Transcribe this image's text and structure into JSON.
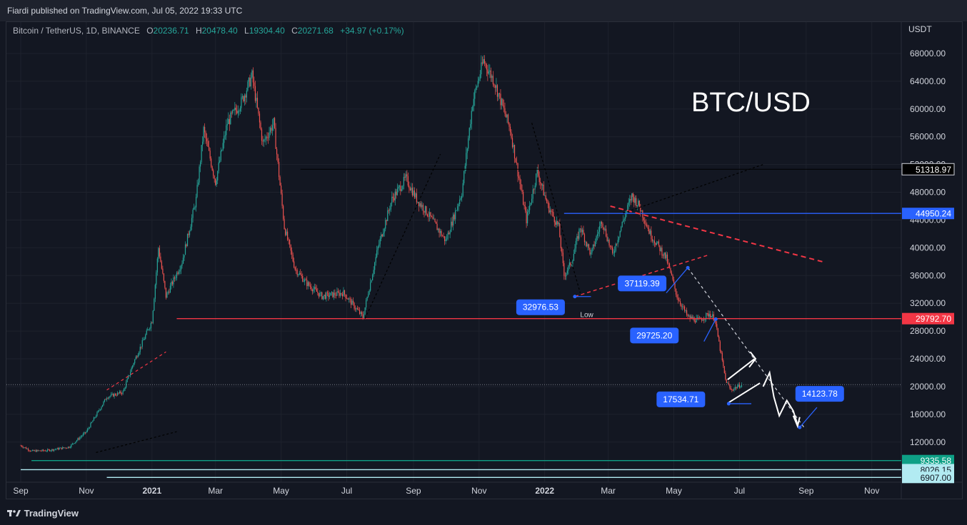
{
  "header": {
    "published": "Fiardi published on TradingView.com, Jul 05, 2022 19:33 UTC"
  },
  "legend": {
    "symbol": "Bitcoin / TetherUS, 1D, BINANCE",
    "o_label": "O",
    "o": "20236.71",
    "h_label": "H",
    "h": "20478.40",
    "l_label": "L",
    "l": "19304.40",
    "c_label": "C",
    "c": "20271.68",
    "change": "+34.97 (+0.17%)"
  },
  "footer": {
    "brand": "TradingView"
  },
  "colors": {
    "background": "#131722",
    "up": "#26a69a",
    "down": "#ef5350",
    "label_blue": "#2962ff",
    "red_level": "#f23645",
    "blue_level": "#2962ff"
  },
  "chart_data": {
    "type": "candlestick",
    "title": "BTC/USD",
    "currency": "USDT",
    "y_ticks": [
      "68000.00",
      "64000.00",
      "60000.00",
      "56000.00",
      "52000.00",
      "48000.00",
      "44000.00",
      "40000.00",
      "36000.00",
      "32000.00",
      "28000.00",
      "24000.00",
      "20000.00",
      "16000.00",
      "12000.00"
    ],
    "ylim": [
      4000,
      70000
    ],
    "x_ticks": [
      {
        "label": "Sep",
        "d": 0
      },
      {
        "label": "Nov",
        "d": 61
      },
      {
        "label": "2021",
        "d": 122,
        "bold": true
      },
      {
        "label": "Mar",
        "d": 181
      },
      {
        "label": "May",
        "d": 242
      },
      {
        "label": "Jul",
        "d": 303
      },
      {
        "label": "Sep",
        "d": 365
      },
      {
        "label": "Nov",
        "d": 426
      },
      {
        "label": "2022",
        "d": 487,
        "bold": true
      },
      {
        "label": "Mar",
        "d": 546
      },
      {
        "label": "May",
        "d": 607
      },
      {
        "label": "Jul",
        "d": 668
      },
      {
        "label": "Sep",
        "d": 730
      },
      {
        "label": "Nov",
        "d": 791
      }
    ],
    "price_path": [
      [
        0,
        11500
      ],
      [
        10,
        10700
      ],
      [
        25,
        10800
      ],
      [
        45,
        11300
      ],
      [
        61,
        13500
      ],
      [
        80,
        18500
      ],
      [
        95,
        19200
      ],
      [
        105,
        23500
      ],
      [
        122,
        29500
      ],
      [
        128,
        40000
      ],
      [
        135,
        33000
      ],
      [
        150,
        38000
      ],
      [
        163,
        47000
      ],
      [
        170,
        57000
      ],
      [
        181,
        49500
      ],
      [
        192,
        58000
      ],
      [
        205,
        61000
      ],
      [
        215,
        64800
      ],
      [
        225,
        55000
      ],
      [
        235,
        58000
      ],
      [
        245,
        43000
      ],
      [
        255,
        37000
      ],
      [
        265,
        35000
      ],
      [
        280,
        33000
      ],
      [
        300,
        33500
      ],
      [
        318,
        30000
      ],
      [
        332,
        40000
      ],
      [
        345,
        47000
      ],
      [
        358,
        50000
      ],
      [
        368,
        47000
      ],
      [
        378,
        45000
      ],
      [
        395,
        41000
      ],
      [
        410,
        48000
      ],
      [
        420,
        61000
      ],
      [
        430,
        67000
      ],
      [
        440,
        64000
      ],
      [
        455,
        57000
      ],
      [
        470,
        44000
      ],
      [
        480,
        51000
      ],
      [
        490,
        46000
      ],
      [
        500,
        43000
      ],
      [
        505,
        36000
      ],
      [
        512,
        38000
      ],
      [
        520,
        43000
      ],
      [
        530,
        39000
      ],
      [
        540,
        44000
      ],
      [
        550,
        39000
      ],
      [
        560,
        44000
      ],
      [
        568,
        47500
      ],
      [
        575,
        46000
      ],
      [
        585,
        42000
      ],
      [
        600,
        38500
      ],
      [
        610,
        33000
      ],
      [
        620,
        30000
      ],
      [
        630,
        29500
      ],
      [
        640,
        30500
      ],
      [
        645,
        29800
      ],
      [
        655,
        21000
      ],
      [
        660,
        19500
      ],
      [
        670,
        20300
      ]
    ],
    "levels": [
      {
        "price": "51318.97",
        "value": 51318.97,
        "color": "#000000",
        "text_color": "#ffffff",
        "border": "#d1d4dc",
        "d_start": 260
      },
      {
        "price": "44950.24",
        "value": 44950.24,
        "color": "#2962ff",
        "text_color": "#ffffff",
        "d_start": 505
      },
      {
        "price": "29792.70",
        "value": 29792.7,
        "color": "#f23645",
        "text_color": "#ffffff",
        "d_start": 145
      },
      {
        "price": "9335.58",
        "value": 9335.58,
        "color": "#0ea086",
        "text_color": "#ffffff",
        "d_start": 10
      },
      {
        "price": "8026.15",
        "value": 8026.15,
        "color": "#b2ebf2",
        "text_color": "#131722",
        "d_start": 0
      },
      {
        "price": "6907.00",
        "value": 6907.0,
        "color": "#b2ebf2",
        "text_color": "#131722",
        "d_start": 80
      }
    ],
    "price_labels": [
      {
        "text": "32976.53",
        "d": 515,
        "value": 32976.53
      },
      {
        "text": "37119.39",
        "d": 620,
        "value": 37119.39
      },
      {
        "text": "29725.20",
        "d": 646,
        "value": 29725.2
      },
      {
        "text": "17534.71",
        "d": 658,
        "value": 17534.71
      },
      {
        "text": "14123.78",
        "d": 724,
        "value": 14123.78
      }
    ],
    "annotations": [
      "Low"
    ],
    "last_price": "20271.68"
  }
}
